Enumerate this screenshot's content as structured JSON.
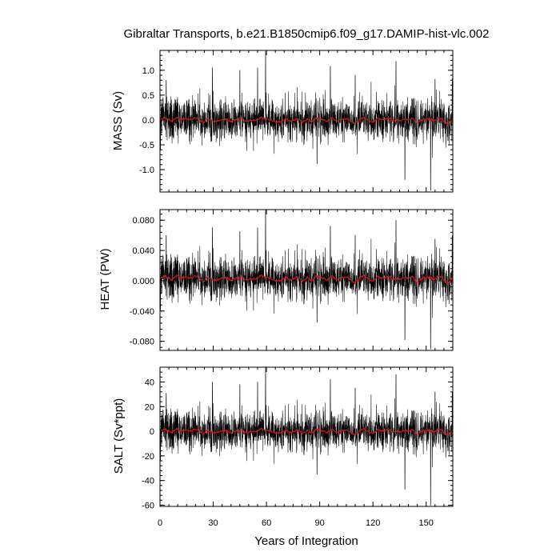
{
  "title": "Gibraltar Transports, b.e21.B1850cmip6.f09_g17.DAMIP-hist-vlc.002",
  "xlabel": "Years of Integration",
  "colors": {
    "raw": "#000000",
    "smooth": "#e8141b",
    "frame": "#000000"
  },
  "chart_data": [
    {
      "type": "line",
      "panel": "mass",
      "ylabel": "MASS (Sv)",
      "xlim": [
        0,
        165
      ],
      "ylim": [
        -1.45,
        1.4
      ],
      "xticks": [
        0,
        30,
        60,
        90,
        120,
        150
      ],
      "xtick_labels": [
        "0",
        "30",
        "60",
        "90",
        "120",
        "150"
      ],
      "yticks": [
        -1.0,
        -0.5,
        0.0,
        0.5,
        1.0
      ],
      "ytick_labels": [
        "-1.0",
        "-0.5",
        "0.0",
        "0.5",
        "1.0"
      ],
      "series": [
        {
          "style": "monthly",
          "sigma": 0.22,
          "mean": 0.0,
          "spikes": [
            [
              3.5,
              0.8
            ],
            [
              29.5,
              1.05
            ],
            [
              45,
              1.0
            ],
            [
              55,
              1.05
            ],
            [
              59.5,
              1.38
            ],
            [
              88.5,
              -0.88
            ],
            [
              96,
              1.08
            ],
            [
              110,
              0.9
            ],
            [
              133,
              1.18
            ],
            [
              138,
              -1.2
            ],
            [
              152.5,
              -1.42
            ],
            [
              155,
              0.82
            ]
          ]
        },
        {
          "style": "smoothed",
          "amplitude": 0.05,
          "mean": 0.0
        }
      ]
    },
    {
      "type": "line",
      "panel": "heat",
      "ylabel": "HEAT (PW)",
      "xlim": [
        0,
        165
      ],
      "ylim": [
        -0.092,
        0.094
      ],
      "xticks": [
        0,
        30,
        60,
        90,
        120,
        150
      ],
      "xtick_labels": [
        "0",
        "30",
        "60",
        "90",
        "120",
        "150"
      ],
      "yticks": [
        -0.08,
        -0.04,
        0.0,
        0.04,
        0.08
      ],
      "ytick_labels": [
        "-0.080",
        "-0.040",
        "0.000",
        "0.040",
        "0.080"
      ],
      "series": [
        {
          "style": "monthly",
          "sigma": 0.015,
          "mean": 0.003,
          "spikes": [
            [
              3.5,
              0.06
            ],
            [
              29.5,
              0.07
            ],
            [
              45,
              0.065
            ],
            [
              55,
              0.07
            ],
            [
              59.5,
              0.093
            ],
            [
              88.5,
              -0.055
            ],
            [
              96,
              0.072
            ],
            [
              110,
              0.06
            ],
            [
              133,
              0.08
            ],
            [
              138,
              -0.078
            ],
            [
              152.5,
              -0.09
            ],
            [
              155,
              0.055
            ]
          ]
        },
        {
          "style": "smoothed",
          "amplitude": 0.004,
          "mean": 0.003
        }
      ]
    },
    {
      "type": "line",
      "panel": "salt",
      "ylabel": "SALT (Sv*ppt)",
      "xlim": [
        0,
        165
      ],
      "ylim": [
        -61,
        52
      ],
      "xticks": [
        0,
        30,
        60,
        90,
        120,
        150
      ],
      "xtick_labels": [
        "0",
        "30",
        "60",
        "90",
        "120",
        "150"
      ],
      "yticks": [
        -60,
        -40,
        -20,
        0,
        20,
        40
      ],
      "ytick_labels": [
        "-60",
        "-40",
        "-20",
        "0",
        "20",
        "40"
      ],
      "series": [
        {
          "style": "monthly",
          "sigma": 8.5,
          "mean": 0.0,
          "spikes": [
            [
              3.5,
              31
            ],
            [
              29.5,
              40
            ],
            [
              45,
              38
            ],
            [
              55,
              40
            ],
            [
              59.5,
              52
            ],
            [
              88.5,
              -35
            ],
            [
              96,
              42
            ],
            [
              110,
              35
            ],
            [
              133,
              46
            ],
            [
              138,
              -47
            ],
            [
              152.5,
              -60
            ],
            [
              155,
              32
            ]
          ]
        },
        {
          "style": "smoothed",
          "amplitude": 2.0,
          "mean": 0.0
        }
      ]
    }
  ]
}
